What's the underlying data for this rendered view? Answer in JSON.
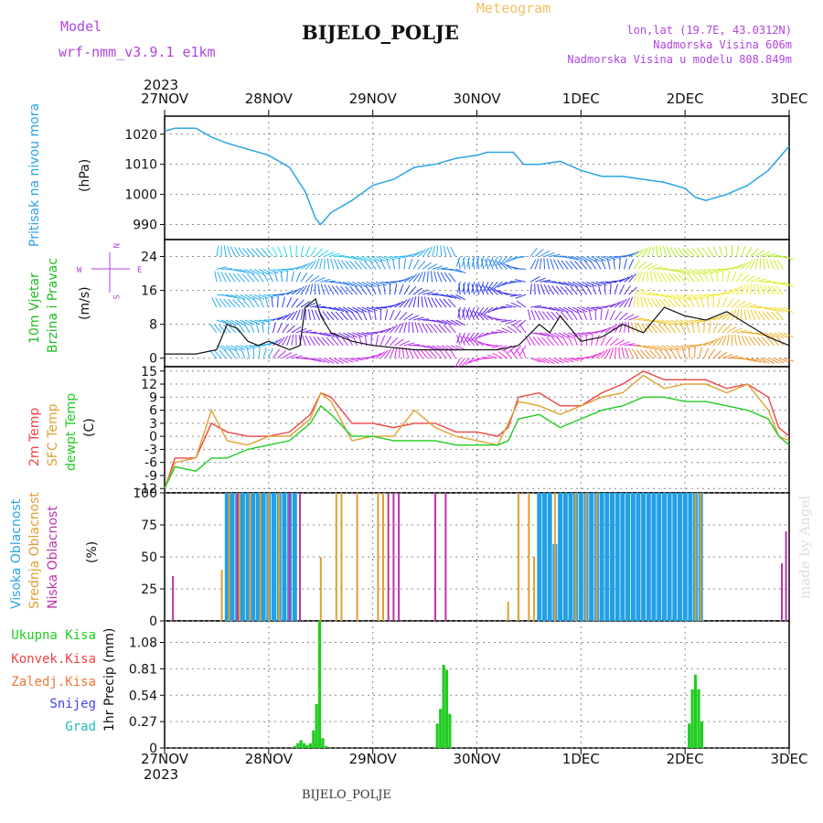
{
  "header": {
    "model_label": "Model",
    "model_name": "wrf-nmm_v3.9.1  e1km",
    "title": "BIJELO_POLJE",
    "meteogram_label": "Meteogram",
    "lonlat": "lon,lat (19.7E, 43.0312N)",
    "elevation": "Nadmorska Visina 606m",
    "model_elevation": "Nadmorska Visina u modelu 808.849m",
    "footer_title": "BIJELO_POLJE",
    "watermark": "made by Angel"
  },
  "time_axis": {
    "year": "2023",
    "ticks": [
      "27NOV",
      "28NOV",
      "29NOV",
      "30NOV",
      "1DEC",
      "2DEC",
      "3DEC"
    ]
  },
  "colors": {
    "pressure": "#29a3e6",
    "wind_label": "#22bb22",
    "temp2m": "#ee4444",
    "sfc_temp": "#e0a030",
    "dewpoint": "#22cc22",
    "high_cloud": "#22a0e6",
    "mid_cloud": "#e0a030",
    "low_cloud": "#bb33aa",
    "total_precip": "#22cc22",
    "conv_precip": "#ee4444",
    "frozen_precip": "#ee7733",
    "snow": "#4444ee",
    "hail": "#22bbbb",
    "purple_text": "#b044e0"
  },
  "chart_data": [
    {
      "type": "line",
      "panel": "pressure",
      "ylabel_main": "Pritisak na nivou mora",
      "unit": "(hPa)",
      "yticks": [
        990,
        1000,
        1010,
        1020
      ],
      "ylim": [
        985,
        1026
      ],
      "x_days": [
        0,
        0.1,
        0.3,
        0.45,
        0.6,
        0.8,
        1.0,
        1.2,
        1.35,
        1.45,
        1.5,
        1.6,
        1.8,
        2.0,
        2.2,
        2.4,
        2.6,
        2.8,
        3.0,
        3.1,
        3.2,
        3.35,
        3.45,
        3.6,
        3.8,
        4.0,
        4.2,
        4.4,
        4.6,
        4.8,
        5.0,
        5.1,
        5.2,
        5.4,
        5.6,
        5.8,
        6.0
      ],
      "values": [
        1021,
        1022,
        1022,
        1019,
        1017,
        1015,
        1013,
        1009,
        1001,
        992,
        990,
        994,
        998,
        1003,
        1005,
        1009,
        1010,
        1012,
        1013,
        1014,
        1014,
        1014,
        1010,
        1010,
        1011,
        1008,
        1006,
        1006,
        1005,
        1004,
        1002,
        999,
        998,
        1000,
        1003,
        1008,
        1016
      ]
    },
    {
      "type": "line",
      "panel": "wind",
      "ylabel_main": "10m Vjetar",
      "ylabel_sub": "Brzina i Pravac",
      "unit": "(m/s)",
      "compass": {
        "n": "N",
        "s": "S",
        "e": "E",
        "w": "W"
      },
      "yticks": [
        0,
        8,
        16,
        24
      ],
      "ylim": [
        -2,
        28
      ],
      "series": [
        {
          "name": "10m wind speed",
          "x_days": [
            0,
            0.3,
            0.5,
            0.6,
            0.7,
            0.8,
            0.9,
            1.0,
            1.2,
            1.3,
            1.35,
            1.45,
            1.5,
            1.6,
            1.8,
            2.0,
            2.4,
            2.8,
            3.0,
            3.2,
            3.4,
            3.6,
            3.7,
            3.8,
            4.0,
            4.2,
            4.4,
            4.6,
            4.8,
            5.0,
            5.2,
            5.4,
            5.6,
            5.8,
            6.0
          ],
          "values": [
            1,
            1,
            2,
            8,
            7,
            4,
            3,
            4,
            2,
            3,
            12,
            14,
            10,
            6,
            4,
            3,
            2,
            2,
            2,
            2,
            3,
            8,
            6,
            10,
            4,
            5,
            8,
            6,
            12,
            10,
            9,
            11,
            8,
            5,
            3
          ]
        }
      ]
    },
    {
      "type": "line",
      "panel": "temperature",
      "ylabel_lines": [
        "2m Temp",
        "SFC Temp",
        "dewpt Temp"
      ],
      "unit": "(C)",
      "yticks": [
        -12,
        -9,
        -6,
        -3,
        0,
        3,
        6,
        9,
        12,
        15
      ],
      "ylim": [
        -13,
        16
      ],
      "series": [
        {
          "name": "2m Temp",
          "x_days": [
            0,
            0.1,
            0.3,
            0.45,
            0.6,
            0.8,
            1.0,
            1.2,
            1.4,
            1.5,
            1.6,
            1.8,
            2.0,
            2.2,
            2.4,
            2.6,
            2.8,
            3.0,
            3.2,
            3.3,
            3.4,
            3.6,
            3.8,
            4.0,
            4.2,
            4.4,
            4.6,
            4.8,
            5.0,
            5.2,
            5.4,
            5.6,
            5.8,
            5.9,
            6.0
          ],
          "values": [
            -12,
            -5,
            -5,
            3,
            1,
            0,
            0,
            1,
            5,
            10,
            9,
            3,
            3,
            2,
            3,
            3,
            1,
            1,
            0,
            2,
            9,
            10,
            7,
            7,
            10,
            12,
            15,
            13,
            13,
            13,
            11,
            12,
            9,
            2,
            0
          ]
        },
        {
          "name": "SFC Temp",
          "x_days": [
            0,
            0.1,
            0.3,
            0.45,
            0.6,
            0.8,
            1.0,
            1.2,
            1.4,
            1.5,
            1.6,
            1.8,
            2.0,
            2.2,
            2.4,
            2.6,
            2.8,
            3.0,
            3.2,
            3.3,
            3.4,
            3.6,
            3.8,
            4.0,
            4.2,
            4.4,
            4.6,
            4.8,
            5.0,
            5.2,
            5.4,
            5.6,
            5.8,
            5.9,
            6.0
          ],
          "values": [
            -12,
            -6,
            -5,
            6,
            -1,
            -2,
            0,
            0,
            4,
            10,
            8,
            -1,
            0,
            0,
            6,
            2,
            0,
            -1,
            -2,
            3,
            8,
            7,
            5,
            7,
            9,
            10,
            14,
            11,
            12,
            12,
            10,
            12,
            6,
            0,
            -1
          ]
        },
        {
          "name": "dewpt Temp",
          "x_days": [
            0,
            0.1,
            0.3,
            0.45,
            0.6,
            0.8,
            1.0,
            1.2,
            1.4,
            1.5,
            1.6,
            1.8,
            2.0,
            2.2,
            2.4,
            2.6,
            2.8,
            3.0,
            3.2,
            3.3,
            3.4,
            3.6,
            3.8,
            4.0,
            4.2,
            4.4,
            4.6,
            4.8,
            5.0,
            5.2,
            5.4,
            5.6,
            5.8,
            5.9,
            6.0
          ],
          "values": [
            -12,
            -7,
            -8,
            -5,
            -5,
            -3,
            -2,
            -1,
            3,
            7,
            5,
            0,
            0,
            -1,
            -1,
            -1,
            -2,
            -2,
            -2,
            -1,
            4,
            5,
            2,
            4,
            6,
            7,
            9,
            9,
            8,
            8,
            7,
            6,
            4,
            0,
            -2
          ]
        }
      ]
    },
    {
      "type": "bar",
      "panel": "cloud",
      "ylabel_lines": [
        "Visoka Oblacnost",
        "Srednja Oblacnost",
        "Niska Oblacnost"
      ],
      "unit": "(%)",
      "yticks": [
        0,
        25,
        50,
        75,
        100
      ],
      "ylim": [
        0,
        100
      ],
      "series": [
        {
          "name": "Visoka Oblacnost",
          "x_days": [
            0.6,
            0.65,
            0.7,
            0.75,
            0.8,
            0.85,
            0.9,
            0.95,
            1.0,
            1.05,
            1.1,
            1.15,
            1.2,
            1.25,
            3.6,
            3.65,
            3.7,
            3.75,
            3.8,
            3.85,
            3.9,
            3.95,
            4.0,
            4.05,
            4.1,
            4.15,
            4.2,
            4.25,
            4.3,
            4.35,
            4.4,
            4.45,
            4.5,
            4.55,
            4.6,
            4.65,
            4.7,
            4.75,
            4.8,
            4.85,
            4.9,
            4.95,
            5.0,
            5.05,
            5.1,
            5.15
          ],
          "values": [
            100,
            100,
            100,
            100,
            100,
            100,
            100,
            100,
            100,
            100,
            100,
            100,
            100,
            100,
            100,
            100,
            100,
            60,
            100,
            100,
            100,
            100,
            100,
            100,
            100,
            100,
            100,
            100,
            100,
            100,
            100,
            100,
            100,
            100,
            100,
            100,
            100,
            100,
            100,
            100,
            100,
            100,
            100,
            100,
            100,
            100
          ]
        },
        {
          "name": "Srednja Oblacnost",
          "x_days": [
            0.55,
            0.62,
            0.72,
            0.82,
            0.92,
            1.0,
            1.1,
            1.2,
            1.3,
            1.5,
            1.65,
            1.7,
            1.85,
            2.05,
            2.1,
            3.3,
            3.4,
            3.5,
            3.55,
            3.75,
            3.95,
            4.05,
            4.15,
            5.1,
            5.15
          ],
          "values": [
            40,
            100,
            100,
            100,
            100,
            100,
            100,
            100,
            100,
            50,
            100,
            100,
            100,
            100,
            100,
            15,
            100,
            100,
            50,
            100,
            100,
            100,
            100,
            100,
            100
          ]
        },
        {
          "name": "Niska Oblacnost",
          "x_days": [
            0.08,
            0.7,
            1.2,
            1.3,
            2.15,
            2.2,
            2.25,
            2.6,
            2.7,
            5.4,
            5.5,
            5.7,
            5.93,
            5.97
          ],
          "values": [
            35,
            100,
            100,
            100,
            100,
            100,
            100,
            100,
            100,
            5,
            5,
            5,
            45,
            70
          ]
        }
      ]
    },
    {
      "type": "bar",
      "panel": "precip",
      "ylabel": "1hr Precip (mm)",
      "legend": [
        "Ukupna Kisa",
        "Konvek.Kisa",
        "Zaledj.Kisa",
        "Snijeg",
        "Grad"
      ],
      "yticks": [
        0,
        0.27,
        0.54,
        0.81,
        1.08
      ],
      "ylim": [
        0,
        1.3
      ],
      "series": [
        {
          "name": "Ukupna Kisa",
          "x_days": [
            1.25,
            1.28,
            1.31,
            1.34,
            1.37,
            1.4,
            1.43,
            1.46,
            1.49,
            1.52,
            1.55,
            2.62,
            2.65,
            2.68,
            2.71,
            2.74,
            5.04,
            5.07,
            5.1,
            5.13,
            5.16
          ],
          "values": [
            0.02,
            0.05,
            0.08,
            0.05,
            0.03,
            0.05,
            0.18,
            0.45,
            1.3,
            0.1,
            0.02,
            0.25,
            0.4,
            0.85,
            0.8,
            0.35,
            0.25,
            0.6,
            0.75,
            0.6,
            0.27
          ]
        }
      ]
    }
  ]
}
